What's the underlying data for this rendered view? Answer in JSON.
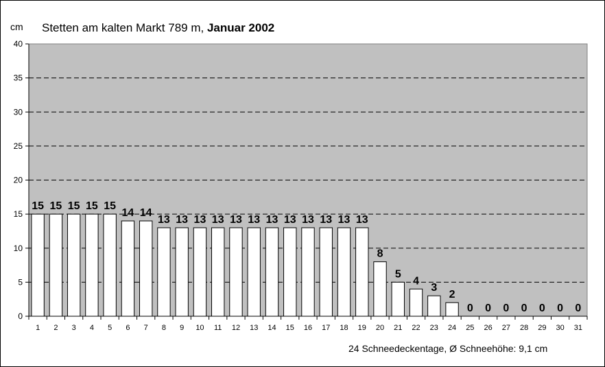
{
  "header": {
    "unit": "cm",
    "title_prefix": "Stetten am kalten Markt 789 m, ",
    "title_bold": "Januar 2002"
  },
  "footer": {
    "summary": "24 Schneedeckentage,  Ø Schneehöhe:  9,1 cm"
  },
  "colors": {
    "plot_background": "#c0c0c0",
    "bar_fill": "#ffffff",
    "bar_stroke": "#000000",
    "gridline": "#000000"
  },
  "chart_data": {
    "type": "bar",
    "title": "Stetten am kalten Markt 789 m, Januar 2002",
    "ylabel": "cm",
    "xlabel": "",
    "ylim": [
      0,
      40
    ],
    "yticks": [
      0,
      5,
      10,
      15,
      20,
      25,
      30,
      35,
      40
    ],
    "grid": "dashed horizontal",
    "legend": "none",
    "categories": [
      "1",
      "2",
      "3",
      "4",
      "5",
      "6",
      "7",
      "8",
      "9",
      "10",
      "11",
      "12",
      "13",
      "14",
      "15",
      "16",
      "17",
      "18",
      "19",
      "20",
      "21",
      "22",
      "23",
      "24",
      "25",
      "26",
      "27",
      "28",
      "29",
      "30",
      "31"
    ],
    "values": [
      15,
      15,
      15,
      15,
      15,
      14,
      14,
      13,
      13,
      13,
      13,
      13,
      13,
      13,
      13,
      13,
      13,
      13,
      13,
      8,
      5,
      4,
      3,
      2,
      0,
      0,
      0,
      0,
      0,
      0,
      0
    ]
  }
}
